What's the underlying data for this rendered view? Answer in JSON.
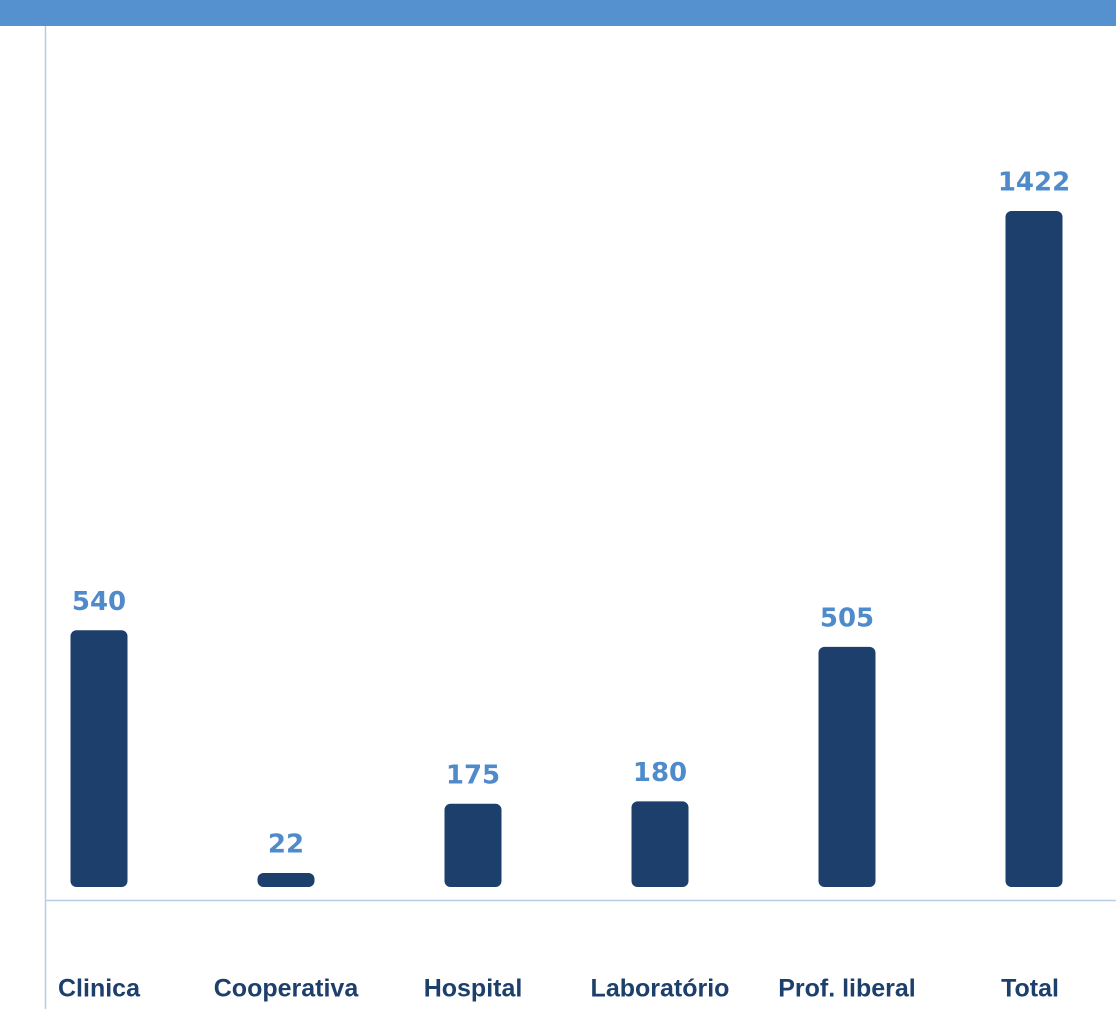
{
  "chart_data": {
    "type": "bar",
    "categories": [
      "Clinica",
      "Cooperativa",
      "Hospital",
      "Laboratório",
      "Prof. liberal",
      "Total"
    ],
    "values": [
      540,
      22,
      175,
      180,
      505,
      1422
    ],
    "color": "#1d3f6b"
  }
}
